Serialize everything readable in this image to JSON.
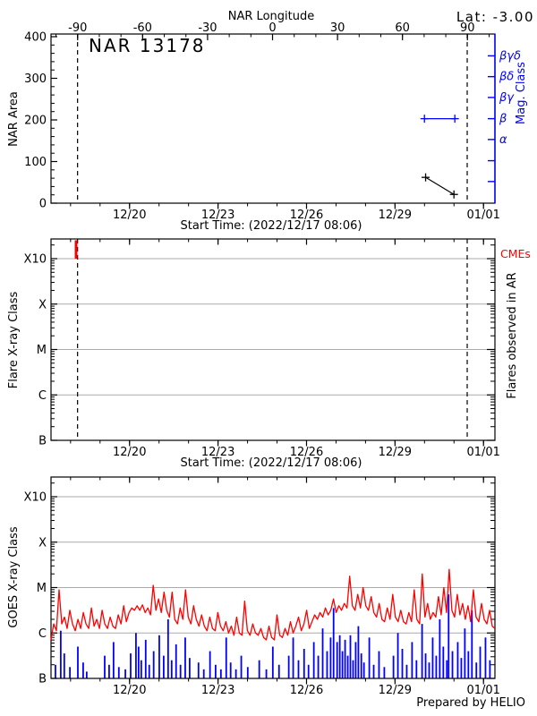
{
  "colors": {
    "frame": "#000000",
    "grid_gray": "#aaaaaa",
    "series_red": "#ff0000",
    "series_blue": "#0000ff",
    "background": "#ffffff"
  },
  "time_axis": {
    "xlabel": "Start Time: (2022/12/17 08:06)",
    "span_days": 15.05,
    "ticks": [
      {
        "day": 2.6625,
        "label": "12/20"
      },
      {
        "day": 5.6625,
        "label": "12/23"
      },
      {
        "day": 8.6625,
        "label": "12/26"
      },
      {
        "day": 11.6625,
        "label": "12/29"
      },
      {
        "day": 14.6625,
        "label": "01/01"
      }
    ],
    "minor_first_day": 0.6625,
    "minor_step_days": 1,
    "minor_count": 15
  },
  "limb_crossings": {
    "east_day": 0.9,
    "west_day": 14.11
  },
  "footer": {
    "credit": "Prepared by HELIO"
  },
  "chart_data": [
    {
      "type": "line",
      "title": "NAR 13178",
      "ylabel": "NAR Area",
      "ylim": [
        0,
        400
      ],
      "yticks": [
        0,
        100,
        200,
        300,
        400
      ],
      "y_minor_step": 20,
      "xlabel": "Start Time: (2022/12/17 08:06)",
      "top_axis": {
        "label": "NAR Longitude",
        "lat_label": "Lat:  -3.00",
        "lim": [
          -102.3,
          102.7
        ],
        "ticks": [
          -90,
          -60,
          -30,
          0,
          30,
          60,
          90
        ],
        "minor_step": 10
      },
      "right_axis": {
        "label": "Mag. Class",
        "ticks": [
          {
            "area": 354,
            "label": "βγδ"
          },
          {
            "area": 304,
            "label": "βδ"
          },
          {
            "area": 254,
            "label": "βγ"
          },
          {
            "area": 203,
            "label": "β"
          },
          {
            "area": 153,
            "label": "α"
          },
          {
            "area": 102,
            "label": ""
          },
          {
            "area": 52,
            "label": ""
          }
        ]
      },
      "area_series": {
        "name": "NAR area",
        "marker": "plus",
        "points": [
          {
            "day": 12.7,
            "area": 62
          },
          {
            "day": 13.66,
            "area": 21
          }
        ]
      },
      "mag_class_series": {
        "class": "β",
        "area_level": 203,
        "start_day": 12.66,
        "end_day": 13.69
      }
    },
    {
      "type": "event",
      "ylabel": "Flare X-ray Class",
      "yticks": [
        "B",
        "C",
        "M",
        "X",
        "X10"
      ],
      "xlabel": "Start Time: (2022/12/17 08:06)",
      "right_label_top": "CMEs",
      "right_label": "Flares observed in AR",
      "cme_event_days": [
        0.85
      ],
      "flare_events": []
    },
    {
      "type": "line",
      "ylabel": "GOES X-ray Class",
      "yticks": [
        "B",
        "C",
        "M",
        "X",
        "X10"
      ],
      "goes_red_series": {
        "name": "GOES X-ray flux",
        "start_day": 0,
        "step_days": 0.09121,
        "unit": "decades above B class",
        "values": [
          0.85,
          1.2,
          1.05,
          1.95,
          1.2,
          1.35,
          1.1,
          1.5,
          1.2,
          1.05,
          1.3,
          1.1,
          1.45,
          1.2,
          1.1,
          1.55,
          1.15,
          1.3,
          1.1,
          1.5,
          1.2,
          1.1,
          1.35,
          1.15,
          1.1,
          1.4,
          1.2,
          1.6,
          1.25,
          1.45,
          1.55,
          1.5,
          1.6,
          1.5,
          1.62,
          1.45,
          1.55,
          1.4,
          2.05,
          1.5,
          1.75,
          1.45,
          1.9,
          1.5,
          1.35,
          1.9,
          1.3,
          1.2,
          1.55,
          1.3,
          1.95,
          1.35,
          1.2,
          1.6,
          1.3,
          1.15,
          1.4,
          1.15,
          1.05,
          1.35,
          1.1,
          1.05,
          1.45,
          1.15,
          1.05,
          1.25,
          1.0,
          1.15,
          0.95,
          1.35,
          1.0,
          0.95,
          1.7,
          1.05,
          0.95,
          1.2,
          1.0,
          0.95,
          1.1,
          0.9,
          0.85,
          1.15,
          0.9,
          0.85,
          1.4,
          0.95,
          0.9,
          1.1,
          0.95,
          1.25,
          1.0,
          1.15,
          1.35,
          1.05,
          1.2,
          1.5,
          1.1,
          1.25,
          1.4,
          1.3,
          1.45,
          1.35,
          1.55,
          1.4,
          1.5,
          1.75,
          1.45,
          1.6,
          1.5,
          1.65,
          1.55,
          2.25,
          1.6,
          1.5,
          1.85,
          1.55,
          2.0,
          1.6,
          1.5,
          1.8,
          1.45,
          1.35,
          1.65,
          1.3,
          1.25,
          1.55,
          1.3,
          1.85,
          1.35,
          1.25,
          1.5,
          1.25,
          1.2,
          1.45,
          1.25,
          1.95,
          1.3,
          1.2,
          2.3,
          1.35,
          1.65,
          1.3,
          1.45,
          1.35,
          1.8,
          1.4,
          2.0,
          1.45,
          2.4,
          1.5,
          1.35,
          1.85,
          1.4,
          1.65,
          1.3,
          1.6,
          1.25,
          1.95,
          1.35,
          1.25,
          1.65,
          1.3,
          1.2,
          1.5,
          1.15,
          1.1
        ]
      },
      "goes_blue_spikes": {
        "name": "discrete flare events",
        "unit": "[day, peak decades above B]",
        "points": [
          [
            0.15,
            0.3
          ],
          [
            0.33,
            1.05
          ],
          [
            0.45,
            0.55
          ],
          [
            0.64,
            0.25
          ],
          [
            0.91,
            0.7
          ],
          [
            1.09,
            0.35
          ],
          [
            1.21,
            0.15
          ],
          [
            1.82,
            0.5
          ],
          [
            1.97,
            0.3
          ],
          [
            2.12,
            0.8
          ],
          [
            2.3,
            0.25
          ],
          [
            2.52,
            0.2
          ],
          [
            2.7,
            0.55
          ],
          [
            2.88,
            1.0
          ],
          [
            2.97,
            0.7
          ],
          [
            3.06,
            0.4
          ],
          [
            3.21,
            0.85
          ],
          [
            3.33,
            0.3
          ],
          [
            3.48,
            0.6
          ],
          [
            3.67,
            0.95
          ],
          [
            3.82,
            0.5
          ],
          [
            3.97,
            1.3
          ],
          [
            4.09,
            0.4
          ],
          [
            4.24,
            0.75
          ],
          [
            4.39,
            0.3
          ],
          [
            4.55,
            0.9
          ],
          [
            4.7,
            0.45
          ],
          [
            5.0,
            0.35
          ],
          [
            5.18,
            0.2
          ],
          [
            5.39,
            0.6
          ],
          [
            5.58,
            0.3
          ],
          [
            5.76,
            0.2
          ],
          [
            5.94,
            0.9
          ],
          [
            6.09,
            0.35
          ],
          [
            6.27,
            0.2
          ],
          [
            6.45,
            0.5
          ],
          [
            6.67,
            0.25
          ],
          [
            7.06,
            0.4
          ],
          [
            7.3,
            0.2
          ],
          [
            7.52,
            0.7
          ],
          [
            7.73,
            0.3
          ],
          [
            8.06,
            0.5
          ],
          [
            8.21,
            0.9
          ],
          [
            8.39,
            0.4
          ],
          [
            8.58,
            0.65
          ],
          [
            8.73,
            0.3
          ],
          [
            8.91,
            0.8
          ],
          [
            9.06,
            0.5
          ],
          [
            9.21,
            1.1
          ],
          [
            9.36,
            0.6
          ],
          [
            9.48,
            0.9
          ],
          [
            9.58,
            1.55
          ],
          [
            9.7,
            0.8
          ],
          [
            9.79,
            0.95
          ],
          [
            9.88,
            0.6
          ],
          [
            9.97,
            0.85
          ],
          [
            10.06,
            0.5
          ],
          [
            10.15,
            0.95
          ],
          [
            10.24,
            0.4
          ],
          [
            10.33,
            0.8
          ],
          [
            10.42,
            1.15
          ],
          [
            10.52,
            0.55
          ],
          [
            10.61,
            0.35
          ],
          [
            10.79,
            0.9
          ],
          [
            10.94,
            0.3
          ],
          [
            11.12,
            0.6
          ],
          [
            11.3,
            0.25
          ],
          [
            11.61,
            0.5
          ],
          [
            11.76,
            1.0
          ],
          [
            11.91,
            0.65
          ],
          [
            12.06,
            0.3
          ],
          [
            12.24,
            0.8
          ],
          [
            12.39,
            0.4
          ],
          [
            12.58,
            1.2
          ],
          [
            12.7,
            0.55
          ],
          [
            12.82,
            0.35
          ],
          [
            12.94,
            0.9
          ],
          [
            13.06,
            0.5
          ],
          [
            13.18,
            1.3
          ],
          [
            13.3,
            0.7
          ],
          [
            13.42,
            0.4
          ],
          [
            13.48,
            1.85
          ],
          [
            13.61,
            0.6
          ],
          [
            13.79,
            0.8
          ],
          [
            13.91,
            0.45
          ],
          [
            14.03,
            1.1
          ],
          [
            14.15,
            0.6
          ],
          [
            14.27,
            1.5
          ],
          [
            14.42,
            0.35
          ],
          [
            14.55,
            0.7
          ],
          [
            14.73,
            0.9
          ],
          [
            14.88,
            0.4
          ]
        ]
      }
    }
  ]
}
